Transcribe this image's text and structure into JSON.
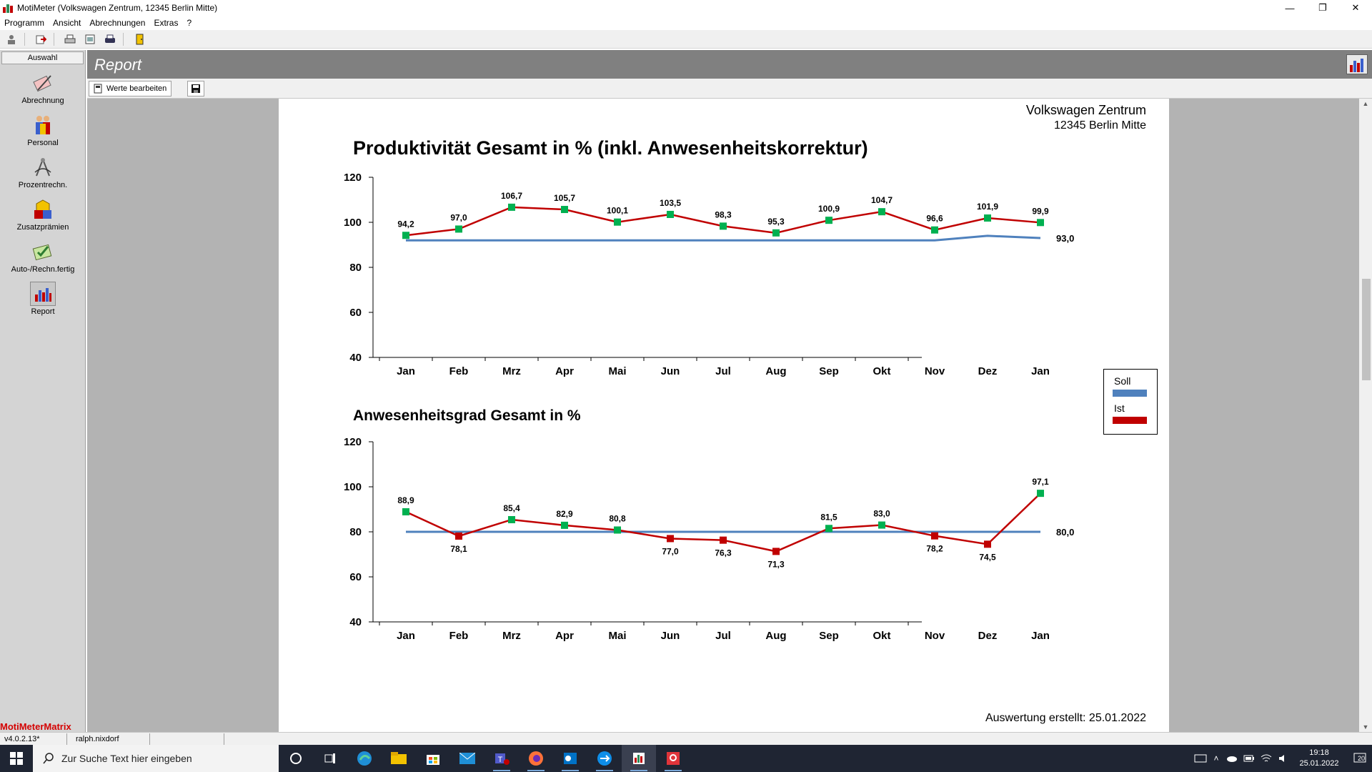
{
  "window": {
    "title": "MotiMeter (Volkswagen Zentrum, 12345 Berlin Mitte)",
    "minimize_icon": "minimize-icon",
    "restore_icon": "restore-icon",
    "close_icon": "close-icon"
  },
  "menu": [
    "Programm",
    "Ansicht",
    "Abrechnungen",
    "Extras",
    "?"
  ],
  "sidebar": {
    "header": "Auswahl",
    "items": [
      {
        "label": "Abrechnung",
        "icon": "calculator-pen-icon"
      },
      {
        "label": "Personal",
        "icon": "people-icon"
      },
      {
        "label": "Prozentrechn.",
        "icon": "compass-icon"
      },
      {
        "label": "Zusatzprämien",
        "icon": "blocks-icon"
      },
      {
        "label": "Auto-/Rechn.fertig",
        "icon": "checklist-icon"
      },
      {
        "label": "Report",
        "icon": "bar-chart-icon",
        "active": true
      }
    ],
    "brand_a": "MotiMeter",
    "brand_b": "Matrix"
  },
  "report": {
    "title": "Report",
    "edit_button": "Werte bearbeiten",
    "company_name": "Volkswagen Zentrum",
    "company_city": "12345 Berlin Mitte",
    "footer": "Auswertung erstellt: 25.01.2022"
  },
  "legend": {
    "soll": "Soll",
    "ist": "Ist",
    "soll_color": "#4f81bd",
    "ist_color": "#c00000"
  },
  "chart_data": [
    {
      "type": "line",
      "title": "Produktivität Gesamt in % (inkl. Anwesenheitskorrektur)",
      "categories": [
        "Jan",
        "Feb",
        "Mrz",
        "Apr",
        "Mai",
        "Jun",
        "Jul",
        "Aug",
        "Sep",
        "Okt",
        "Nov",
        "Dez",
        "Jan"
      ],
      "ylim": [
        40,
        120
      ],
      "yticks": [
        40,
        60,
        80,
        100,
        120
      ],
      "series": [
        {
          "name": "Soll",
          "color": "#4f81bd",
          "values": [
            92,
            92,
            92,
            92,
            92,
            92,
            92,
            92,
            92,
            92,
            92,
            94,
            93
          ]
        },
        {
          "name": "Ist",
          "color": "#c00000",
          "values": [
            94.2,
            97.0,
            106.7,
            105.7,
            100.1,
            103.5,
            98.3,
            95.3,
            100.9,
            104.7,
            96.6,
            101.9,
            99.9
          ]
        }
      ],
      "ist_labels": [
        "94,2",
        "97,0",
        "106,7",
        "105,7",
        "100,1",
        "103,5",
        "98,3",
        "95,3",
        "100,9",
        "104,7",
        "96,6",
        "101,9",
        "99,9"
      ],
      "ist_marker_colors": [
        "#00b050",
        "#00b050",
        "#00b050",
        "#00b050",
        "#00b050",
        "#00b050",
        "#00b050",
        "#00b050",
        "#00b050",
        "#00b050",
        "#00b050",
        "#00b050",
        "#00b050"
      ],
      "soll_end_label": "93,0"
    },
    {
      "type": "line",
      "title": "Anwesenheitsgrad Gesamt in %",
      "categories": [
        "Jan",
        "Feb",
        "Mrz",
        "Apr",
        "Mai",
        "Jun",
        "Jul",
        "Aug",
        "Sep",
        "Okt",
        "Nov",
        "Dez",
        "Jan"
      ],
      "ylim": [
        40,
        120
      ],
      "yticks": [
        40,
        60,
        80,
        100,
        120
      ],
      "series": [
        {
          "name": "Soll",
          "color": "#4f81bd",
          "values": [
            80,
            80,
            80,
            80,
            80,
            80,
            80,
            80,
            80,
            80,
            80,
            80,
            80
          ]
        },
        {
          "name": "Ist",
          "color": "#c00000",
          "values": [
            88.9,
            78.1,
            85.4,
            82.9,
            80.8,
            77.0,
            76.3,
            71.3,
            81.5,
            83.0,
            78.2,
            74.5,
            97.1
          ]
        }
      ],
      "ist_labels": [
        "88,9",
        "78,1",
        "85,4",
        "82,9",
        "80,8",
        "77,0",
        "76,3",
        "71,3",
        "81,5",
        "83,0",
        "78,2",
        "74,5",
        "97,1"
      ],
      "ist_marker_colors": [
        "#00b050",
        "#c00000",
        "#00b050",
        "#00b050",
        "#00b050",
        "#c00000",
        "#c00000",
        "#c00000",
        "#00b050",
        "#00b050",
        "#c00000",
        "#c00000",
        "#00b050"
      ],
      "soll_end_label": "80,0"
    }
  ],
  "statusbar": {
    "version": "v4.0.2.13*",
    "user": "ralph.nixdorf"
  },
  "taskbar": {
    "search_placeholder": "Zur Suche Text hier eingeben",
    "time": "19:18",
    "date": "25.01.2022",
    "notifications": "20"
  }
}
